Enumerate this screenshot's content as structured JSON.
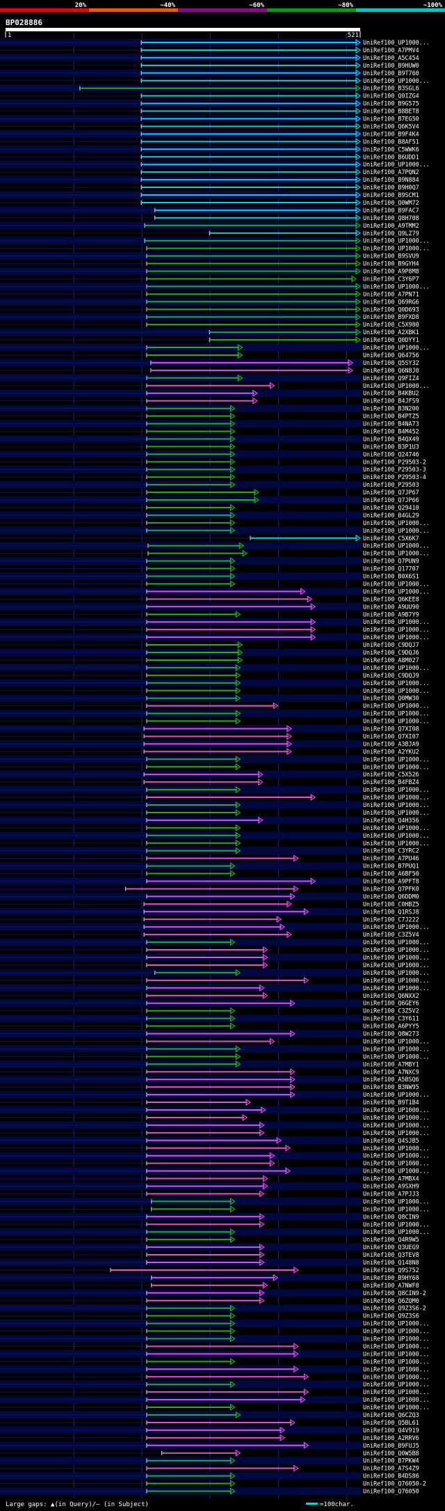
{
  "chart_data": {
    "type": "alignment-overview",
    "title": "BP028886",
    "identity_legend": [
      "20%",
      "~40%",
      "~60%",
      "~80%",
      "~100%"
    ],
    "identity_colors": [
      "#e00000",
      "#e06000",
      "#900090",
      "#00a000",
      "#00c0d0"
    ],
    "color_keys": {
      "cyan": "#00d0f0",
      "green": "#20b020",
      "magenta": "#e050e0"
    },
    "query_start": "1",
    "query_end": "521",
    "query_length": 521,
    "footer_left": "Large gaps: ▲(in Query)/— (in Subject)",
    "footer_right": "=100char.",
    "hits": [
      [
        "UniRef100_UP1000...",
        200,
        521,
        "cyan"
      ],
      [
        "UniRef100_A7PMV4",
        200,
        521,
        "cyan"
      ],
      [
        "UniRef100_A5C454",
        200,
        521,
        "cyan"
      ],
      [
        "UniRef100_B9HUW0",
        200,
        521,
        "cyan"
      ],
      [
        "UniRef100_B9T760",
        200,
        521,
        "cyan"
      ],
      [
        "UniRef100_UP1000...",
        200,
        521,
        "cyan"
      ],
      [
        "UniRef100_B3SGL6",
        110,
        521,
        "green"
      ],
      [
        "UniRef100_Q0IZG4",
        200,
        521,
        "cyan"
      ],
      [
        "UniRef100_B9G575",
        200,
        521,
        "cyan"
      ],
      [
        "UniRef100_B8BET8",
        200,
        521,
        "cyan"
      ],
      [
        "UniRef100_B7EG50",
        200,
        521,
        "cyan"
      ],
      [
        "UniRef100_Q6K5V4",
        200,
        521,
        "cyan"
      ],
      [
        "UniRef100_B9F4K4",
        200,
        521,
        "cyan"
      ],
      [
        "UniRef100_B8AF51",
        200,
        521,
        "cyan"
      ],
      [
        "UniRef100_C5WWK6",
        200,
        521,
        "cyan"
      ],
      [
        "UniRef100_B6UDD1",
        200,
        521,
        "cyan"
      ],
      [
        "UniRef100_UP1000...",
        200,
        521,
        "cyan"
      ],
      [
        "UniRef100_A7PQN2",
        200,
        521,
        "cyan"
      ],
      [
        "UniRef100_B9N884",
        200,
        521,
        "cyan"
      ],
      [
        "UniRef100_B9H0Q7",
        200,
        521,
        "cyan"
      ],
      [
        "UniRef100_B9SCM1",
        200,
        521,
        "cyan"
      ],
      [
        "UniRef100_Q0WM72",
        200,
        521,
        "cyan"
      ],
      [
        "UniRef100_B9FAC7",
        220,
        521,
        "cyan"
      ],
      [
        "UniRef100_Q8H708",
        220,
        521,
        "cyan"
      ],
      [
        "UniRef100_A9TMM2",
        205,
        521,
        "green"
      ],
      [
        "UniRef100_Q9LZ79",
        300,
        521,
        "cyan"
      ],
      [
        "UniRef100_UP1000...",
        205,
        521,
        "green"
      ],
      [
        "UniRef100_UP1000...",
        208,
        521,
        "green"
      ],
      [
        "UniRef100_B9SVU9",
        208,
        521,
        "green"
      ],
      [
        "UniRef100_B9GYH4",
        208,
        521,
        "green"
      ],
      [
        "UniRef100_A9P8M8",
        208,
        521,
        "green"
      ],
      [
        "UniRef100_C3Y6P7",
        208,
        515,
        "green"
      ],
      [
        "UniRef100_UP1000...",
        208,
        521,
        "green"
      ],
      [
        "UniRef100_A7PN71",
        208,
        521,
        "green"
      ],
      [
        "UniRef100_Q69RG6",
        208,
        521,
        "green"
      ],
      [
        "UniRef100_Q0D693",
        208,
        521,
        "green"
      ],
      [
        "UniRef100_B9FXD8",
        208,
        521,
        "green"
      ],
      [
        "UniRef100_C5X980",
        208,
        521,
        "green"
      ],
      [
        "UniRef100_A2XBK1",
        300,
        521,
        "green"
      ],
      [
        "UniRef100_Q0DYY1",
        300,
        521,
        "green"
      ],
      [
        "UniRef100_UP1000...",
        208,
        348,
        "green"
      ],
      [
        "UniRef100_Q64756",
        208,
        348,
        "green"
      ],
      [
        "UniRef100_Q5SY32",
        214,
        510,
        "magenta"
      ],
      [
        "UniRef100_Q6N8J0",
        214,
        510,
        "magenta"
      ],
      [
        "UniRef100_Q9FIZ4",
        208,
        348,
        "green"
      ],
      [
        "UniRef100_UP1000...",
        208,
        395,
        "magenta"
      ],
      [
        "UniRef100_B4KBU2",
        208,
        370,
        "magenta"
      ],
      [
        "UniRef100_B4JFS9",
        208,
        370,
        "magenta"
      ],
      [
        "UniRef100_B3N200",
        208,
        337,
        "green"
      ],
      [
        "UniRef100_B4PTZ5",
        208,
        337,
        "green"
      ],
      [
        "UniRef100_B4NA73",
        208,
        337,
        "green"
      ],
      [
        "UniRef100_B4M452",
        208,
        337,
        "green"
      ],
      [
        "UniRef100_B4QX49",
        208,
        337,
        "green"
      ],
      [
        "UniRef100_B3P1U3",
        208,
        337,
        "green"
      ],
      [
        "UniRef100_Q24746",
        208,
        337,
        "green"
      ],
      [
        "UniRef100_P29503-2",
        208,
        337,
        "green"
      ],
      [
        "UniRef100_P29503-3",
        208,
        337,
        "green"
      ],
      [
        "UniRef100_P29503-4",
        208,
        337,
        "green"
      ],
      [
        "UniRef100_P29503",
        208,
        337,
        "green"
      ],
      [
        "UniRef100_Q7JP67",
        208,
        372,
        "green"
      ],
      [
        "UniRef100_Q7JP66",
        208,
        372,
        "green"
      ],
      [
        "UniRef100_Q29410",
        208,
        337,
        "green"
      ],
      [
        "UniRef100_B4GL29",
        208,
        337,
        "green"
      ],
      [
        "UniRef100_UP1000...",
        208,
        337,
        "green"
      ],
      [
        "UniRef100_UP1000...",
        208,
        337,
        "green"
      ],
      [
        "UniRef100_C5X6K7",
        360,
        521,
        "cyan"
      ],
      [
        "UniRef100_UP1000...",
        210,
        350,
        "green"
      ],
      [
        "UniRef100_UP1000...",
        210,
        355,
        "green"
      ],
      [
        "UniRef100_Q7PUN9",
        208,
        337,
        "green"
      ],
      [
        "UniRef100_Q17707",
        208,
        337,
        "green"
      ],
      [
        "UniRef100_B0X6S1",
        208,
        337,
        "green"
      ],
      [
        "UniRef100_UP1000...",
        208,
        337,
        "green"
      ],
      [
        "UniRef100_UP1000...",
        208,
        440,
        "magenta"
      ],
      [
        "UniRef100_Q6KEE8",
        208,
        450,
        "magenta"
      ],
      [
        "UniRef100_A9UU90",
        208,
        455,
        "magenta"
      ],
      [
        "UniRef100_A9B7Y9",
        208,
        345,
        "green"
      ],
      [
        "UniRef100_UP1000...",
        208,
        455,
        "magenta"
      ],
      [
        "UniRef100_UP1000...",
        208,
        455,
        "magenta"
      ],
      [
        "UniRef100_UP1000...",
        208,
        455,
        "magenta"
      ],
      [
        "UniRef100_C9DQJ7",
        208,
        348,
        "green"
      ],
      [
        "UniRef100_C9DQJ6",
        208,
        348,
        "green"
      ],
      [
        "UniRef100_A8M027",
        208,
        348,
        "green"
      ],
      [
        "UniRef100_UP1000...",
        208,
        345,
        "green"
      ],
      [
        "UniRef100_C9DQJ9",
        208,
        345,
        "green"
      ],
      [
        "UniRef100_UP1000...",
        208,
        345,
        "green"
      ],
      [
        "UniRef100_UP1000...",
        208,
        345,
        "green"
      ],
      [
        "UniRef100_Q0MW30",
        208,
        345,
        "green"
      ],
      [
        "UniRef100_UP1000...",
        208,
        400,
        "magenta"
      ],
      [
        "UniRef100_UP1000...",
        208,
        345,
        "green"
      ],
      [
        "UniRef100_UP1000...",
        208,
        345,
        "green"
      ],
      [
        "UniRef100_Q7XI08",
        204,
        420,
        "magenta"
      ],
      [
        "UniRef100_Q7XI07",
        204,
        420,
        "magenta"
      ],
      [
        "UniRef100_A3BJA9",
        204,
        420,
        "magenta"
      ],
      [
        "UniRef100_A2YKU2",
        204,
        420,
        "magenta"
      ],
      [
        "UniRef100_UP1000...",
        208,
        345,
        "green"
      ],
      [
        "UniRef100_UP1000...",
        208,
        345,
        "green"
      ],
      [
        "UniRef100_C5X526",
        204,
        378,
        "magenta"
      ],
      [
        "UniRef100_B4FBZ4",
        204,
        378,
        "magenta"
      ],
      [
        "UniRef100_UP1000...",
        208,
        345,
        "green"
      ],
      [
        "UniRef100_UP1000...",
        208,
        455,
        "magenta"
      ],
      [
        "UniRef100_UP1000...",
        208,
        345,
        "green"
      ],
      [
        "UniRef100_UP1000...",
        208,
        345,
        "green"
      ],
      [
        "UniRef100_Q4H356",
        208,
        378,
        "magenta"
      ],
      [
        "UniRef100_UP1000...",
        208,
        345,
        "green"
      ],
      [
        "UniRef100_UP1000...",
        208,
        345,
        "green"
      ],
      [
        "UniRef100_UP1000...",
        208,
        345,
        "green"
      ],
      [
        "UniRef100_C3YRC2",
        208,
        345,
        "green"
      ],
      [
        "UniRef100_A7PU46",
        208,
        430,
        "magenta"
      ],
      [
        "UniRef100_B7PUQ1",
        208,
        337,
        "green"
      ],
      [
        "UniRef100_A6BF50",
        208,
        337,
        "green"
      ],
      [
        "UniRef100_A9PFT8",
        208,
        455,
        "magenta"
      ],
      [
        "UniRef100_Q7PFK0",
        177,
        430,
        "magenta"
      ],
      [
        "UniRef100_Q6DDM0",
        208,
        425,
        "magenta"
      ],
      [
        "UniRef100_C0HBZ5",
        204,
        420,
        "magenta"
      ],
      [
        "UniRef100_Q1RSJ8",
        204,
        445,
        "magenta"
      ],
      [
        "UniRef100_C7J222",
        204,
        405,
        "magenta"
      ],
      [
        "UniRef100_UP1000...",
        204,
        410,
        "magenta"
      ],
      [
        "UniRef100_C3Z5V4",
        204,
        420,
        "magenta"
      ],
      [
        "UniRef100_UP1000...",
        208,
        337,
        "green"
      ],
      [
        "UniRef100_UP1000...",
        208,
        385,
        "magenta"
      ],
      [
        "UniRef100_UP1000...",
        208,
        385,
        "magenta"
      ],
      [
        "UniRef100_UP1000...",
        208,
        385,
        "magenta"
      ],
      [
        "UniRef100_UP1000...",
        220,
        345,
        "green"
      ],
      [
        "UniRef100_UP1000...",
        208,
        445,
        "magenta"
      ],
      [
        "UniRef100_UP1000...",
        208,
        380,
        "magenta"
      ],
      [
        "UniRef100_Q6NXX2",
        208,
        385,
        "magenta"
      ],
      [
        "UniRef100_Q6GEY6",
        208,
        425,
        "magenta"
      ],
      [
        "UniRef100_C3Z5V2",
        208,
        337,
        "green"
      ],
      [
        "UniRef100_C3Y611",
        208,
        337,
        "green"
      ],
      [
        "UniRef100_A6PYY5",
        208,
        337,
        "green"
      ],
      [
        "UniRef100_Q8W273",
        208,
        425,
        "magenta"
      ],
      [
        "UniRef100_UP1000...",
        208,
        395,
        "magenta"
      ],
      [
        "UniRef100_UP1000...",
        208,
        345,
        "green"
      ],
      [
        "UniRef100_UP1000...",
        208,
        345,
        "green"
      ],
      [
        "UniRef100_A7MBY1",
        208,
        345,
        "green"
      ],
      [
        "UniRef100_A7NXC9",
        208,
        425,
        "magenta"
      ],
      [
        "UniRef100_A5BSQ6",
        208,
        425,
        "magenta"
      ],
      [
        "UniRef100_B3NW95",
        208,
        425,
        "magenta"
      ],
      [
        "UniRef100_UP1000...",
        208,
        425,
        "magenta"
      ],
      [
        "UniRef100_B9T1B4",
        208,
        360,
        "magenta"
      ],
      [
        "UniRef100_UP1000...",
        208,
        382,
        "magenta"
      ],
      [
        "UniRef100_UP1000...",
        208,
        355,
        "magenta"
      ],
      [
        "UniRef100_UP1000...",
        208,
        380,
        "magenta"
      ],
      [
        "UniRef100_UP1000...",
        208,
        380,
        "magenta"
      ],
      [
        "UniRef100_Q4SJB5",
        208,
        405,
        "magenta"
      ],
      [
        "UniRef100_UP1000...",
        208,
        418,
        "magenta"
      ],
      [
        "UniRef100_UP1000...",
        208,
        395,
        "magenta"
      ],
      [
        "UniRef100_UP1000...",
        208,
        395,
        "magenta"
      ],
      [
        "UniRef100_UP1000...",
        208,
        418,
        "magenta"
      ],
      [
        "UniRef100_A7MBX4",
        208,
        385,
        "magenta"
      ],
      [
        "UniRef100_A9SXH9",
        208,
        385,
        "magenta"
      ],
      [
        "UniRef100_A7PJJ3",
        208,
        380,
        "magenta"
      ],
      [
        "UniRef100_UP1000...",
        215,
        337,
        "green"
      ],
      [
        "UniRef100_UP1000...",
        215,
        337,
        "green"
      ],
      [
        "UniRef100_Q8CIN9",
        208,
        380,
        "magenta"
      ],
      [
        "UniRef100_UP1000...",
        208,
        380,
        "magenta"
      ],
      [
        "UniRef100_UP1000...",
        208,
        337,
        "green"
      ],
      [
        "UniRef100_Q4R9W5",
        208,
        337,
        "green"
      ],
      [
        "UniRef100_Q3UEG9",
        208,
        380,
        "magenta"
      ],
      [
        "UniRef100_Q3TEV8",
        208,
        380,
        "magenta"
      ],
      [
        "UniRef100_Q148N8",
        208,
        380,
        "magenta"
      ],
      [
        "UniRef100_Q9S752",
        155,
        430,
        "magenta"
      ],
      [
        "UniRef100_B9HY68",
        215,
        400,
        "magenta"
      ],
      [
        "UniRef100_A7NWF8",
        215,
        385,
        "magenta"
      ],
      [
        "UniRef100_Q8CIN9-2",
        208,
        380,
        "magenta"
      ],
      [
        "UniRef100_Q6ZQM0",
        208,
        380,
        "magenta"
      ],
      [
        "UniRef100_Q9Z3S6-2",
        208,
        337,
        "green"
      ],
      [
        "UniRef100_Q9Z3S6",
        208,
        337,
        "green"
      ],
      [
        "UniRef100_UP1000...",
        208,
        337,
        "green"
      ],
      [
        "UniRef100_UP1000...",
        208,
        337,
        "green"
      ],
      [
        "UniRef100_UP1000...",
        208,
        337,
        "green"
      ],
      [
        "UniRef100_UP1000...",
        208,
        430,
        "magenta"
      ],
      [
        "UniRef100_UP1000...",
        208,
        430,
        "magenta"
      ],
      [
        "UniRef100_UP1000...",
        208,
        337,
        "green"
      ],
      [
        "UniRef100_UP1000...",
        208,
        430,
        "magenta"
      ],
      [
        "UniRef100_UP1000...",
        208,
        445,
        "magenta"
      ],
      [
        "UniRef100_UP1000...",
        208,
        337,
        "green"
      ],
      [
        "UniRef100_UP1000...",
        208,
        445,
        "magenta"
      ],
      [
        "UniRef100_UP1000...",
        208,
        440,
        "magenta"
      ],
      [
        "UniRef100_UP1000...",
        208,
        337,
        "green"
      ],
      [
        "UniRef100_Q6CZQ3",
        208,
        345,
        "green"
      ],
      [
        "UniRef100_Q5BL61",
        208,
        425,
        "magenta"
      ],
      [
        "UniRef100_Q4V919",
        208,
        410,
        "magenta"
      ],
      [
        "UniRef100_A2RRV6",
        208,
        410,
        "magenta"
      ],
      [
        "UniRef100_B9FUJ5",
        208,
        445,
        "magenta"
      ],
      [
        "UniRef100_Q0W5B8",
        230,
        345,
        "magenta"
      ],
      [
        "UniRef100_B7PKW4",
        208,
        337,
        "green"
      ],
      [
        "UniRef100_A7S4Z9",
        208,
        430,
        "magenta"
      ],
      [
        "UniRef100_B4DS86",
        208,
        337,
        "green"
      ],
      [
        "UniRef100_Q76050-2",
        208,
        337,
        "green"
      ],
      [
        "UniRef100_Q76050",
        208,
        337,
        "green"
      ]
    ]
  }
}
